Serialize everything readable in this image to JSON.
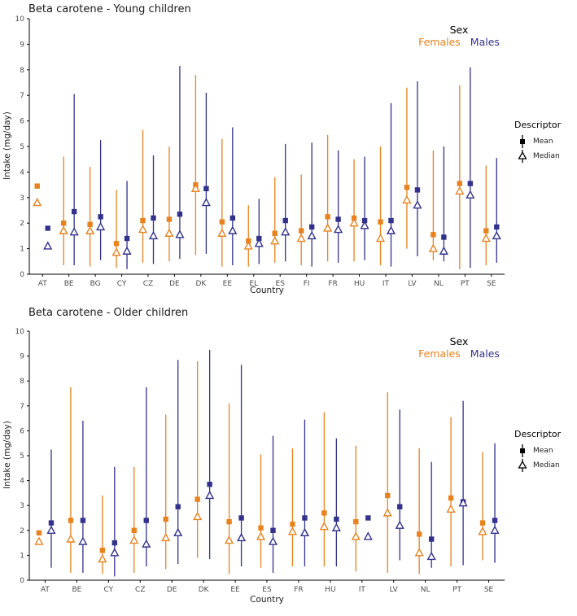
{
  "colors": {
    "female": "#E8821E",
    "male": "#32328C",
    "axis_text": "#4D4D4D",
    "axis_line": "#000000",
    "descriptor_marker": "#000000",
    "background": "#ffffff"
  },
  "sex_legend": {
    "title": "Sex",
    "female_label": "Females",
    "male_label": "Males"
  },
  "descriptor_legend": {
    "title": "Descriptor",
    "mean_label": "Mean",
    "median_label": "Median"
  },
  "chart_data": [
    {
      "type": "errorbar",
      "title": "Beta carotene - Young children",
      "xlabel": "Country",
      "ylabel": "Intake (mg/day)",
      "ylim": [
        0,
        10
      ],
      "yticks": [
        0,
        1,
        2,
        3,
        4,
        5,
        6,
        7,
        8,
        9,
        10
      ],
      "grid": false,
      "legend_position": "top-right-inside and right-outside",
      "categories": [
        "AT",
        "BE",
        "BG",
        "CY",
        "CZ",
        "DE",
        "DK",
        "EE",
        "EL",
        "ES",
        "FI",
        "FR",
        "HU",
        "IT",
        "LV",
        "NL",
        "PT",
        "SE"
      ],
      "series": [
        {
          "name": "Females",
          "sex": "female",
          "mean": [
            3.45,
            2.0,
            1.95,
            1.2,
            2.1,
            2.15,
            3.5,
            2.05,
            1.3,
            1.6,
            1.7,
            2.25,
            2.2,
            2.05,
            3.4,
            1.55,
            3.55,
            1.7
          ],
          "median": [
            2.8,
            1.7,
            1.7,
            0.85,
            1.75,
            1.6,
            3.35,
            1.6,
            1.1,
            1.3,
            1.4,
            1.8,
            2.0,
            1.4,
            2.9,
            1.0,
            3.25,
            1.4
          ],
          "lo": [
            null,
            0.35,
            0.3,
            0.25,
            0.45,
            0.5,
            0.75,
            0.3,
            0.3,
            0.45,
            0.35,
            0.5,
            0.5,
            0.35,
            1.0,
            0.55,
            0.2,
            0.35
          ],
          "hi": [
            null,
            4.6,
            4.2,
            3.3,
            5.65,
            5.0,
            7.8,
            5.3,
            2.7,
            3.8,
            3.9,
            5.45,
            4.5,
            5.0,
            7.3,
            4.85,
            7.4,
            4.25
          ]
        },
        {
          "name": "Males",
          "sex": "male",
          "mean": [
            1.8,
            2.45,
            2.25,
            1.4,
            2.2,
            2.35,
            3.35,
            2.2,
            1.4,
            2.1,
            1.85,
            2.15,
            2.1,
            2.1,
            3.3,
            1.45,
            3.55,
            1.85
          ],
          "median": [
            1.1,
            1.65,
            1.85,
            0.9,
            1.5,
            1.55,
            2.8,
            1.7,
            1.2,
            1.65,
            1.5,
            1.75,
            1.9,
            1.7,
            2.7,
            0.9,
            3.1,
            1.5
          ],
          "lo": [
            null,
            0.35,
            0.55,
            0.2,
            0.4,
            0.6,
            0.8,
            0.35,
            0.4,
            0.5,
            0.3,
            0.45,
            0.55,
            0.3,
            0.7,
            0.5,
            0.25,
            0.45
          ],
          "hi": [
            null,
            7.05,
            5.25,
            3.65,
            4.65,
            8.15,
            7.1,
            5.75,
            2.95,
            5.1,
            5.15,
            4.85,
            4.6,
            6.7,
            7.55,
            5.0,
            8.1,
            4.55
          ]
        }
      ]
    },
    {
      "type": "errorbar",
      "title": "Beta carotene - Older children",
      "xlabel": "Country",
      "ylabel": "Intake (mg/day)",
      "ylim": [
        0,
        10
      ],
      "yticks": [
        0,
        1,
        2,
        3,
        4,
        5,
        6,
        7,
        8,
        9,
        10
      ],
      "grid": false,
      "legend_position": "top-right-inside and right-outside",
      "categories": [
        "AT",
        "BE",
        "CY",
        "CZ",
        "DE",
        "DK",
        "EE",
        "ES",
        "FR",
        "HU",
        "IT",
        "LV",
        "NL",
        "PT",
        "SE"
      ],
      "series": [
        {
          "name": "Females",
          "sex": "female",
          "mean": [
            1.9,
            2.4,
            1.2,
            2.0,
            2.45,
            3.25,
            2.35,
            2.1,
            2.25,
            2.7,
            2.35,
            3.4,
            1.85,
            3.3,
            2.3
          ],
          "median": [
            1.55,
            1.65,
            0.85,
            1.6,
            1.7,
            2.55,
            1.6,
            1.75,
            1.95,
            2.15,
            1.75,
            2.7,
            1.1,
            2.85,
            1.95
          ],
          "lo": [
            null,
            0.3,
            0.25,
            0.3,
            0.45,
            0.9,
            0.25,
            0.5,
            0.55,
            0.55,
            0.35,
            0.3,
            0.25,
            0.55,
            0.8
          ],
          "hi": [
            null,
            7.75,
            3.4,
            4.55,
            6.65,
            8.8,
            7.1,
            5.05,
            5.3,
            6.75,
            5.4,
            7.55,
            5.3,
            6.55,
            5.15
          ]
        },
        {
          "name": "Males",
          "sex": "male",
          "mean": [
            2.3,
            2.4,
            1.5,
            2.4,
            2.95,
            3.85,
            2.5,
            2.0,
            2.5,
            2.45,
            2.5,
            2.95,
            1.65,
            3.15,
            2.4
          ],
          "median": [
            2.0,
            1.55,
            1.1,
            1.45,
            1.9,
            3.4,
            1.7,
            1.55,
            1.9,
            2.1,
            1.75,
            2.2,
            0.95,
            3.1,
            2.0
          ],
          "lo": [
            0.5,
            0.3,
            0.15,
            0.55,
            0.65,
            0.85,
            0.55,
            0.3,
            0.55,
            0.55,
            null,
            0.8,
            0.5,
            0.6,
            0.7
          ],
          "hi": [
            5.25,
            6.4,
            4.55,
            7.75,
            8.85,
            9.25,
            8.65,
            5.8,
            6.45,
            5.7,
            null,
            6.85,
            4.75,
            7.2,
            5.5
          ]
        }
      ]
    }
  ]
}
